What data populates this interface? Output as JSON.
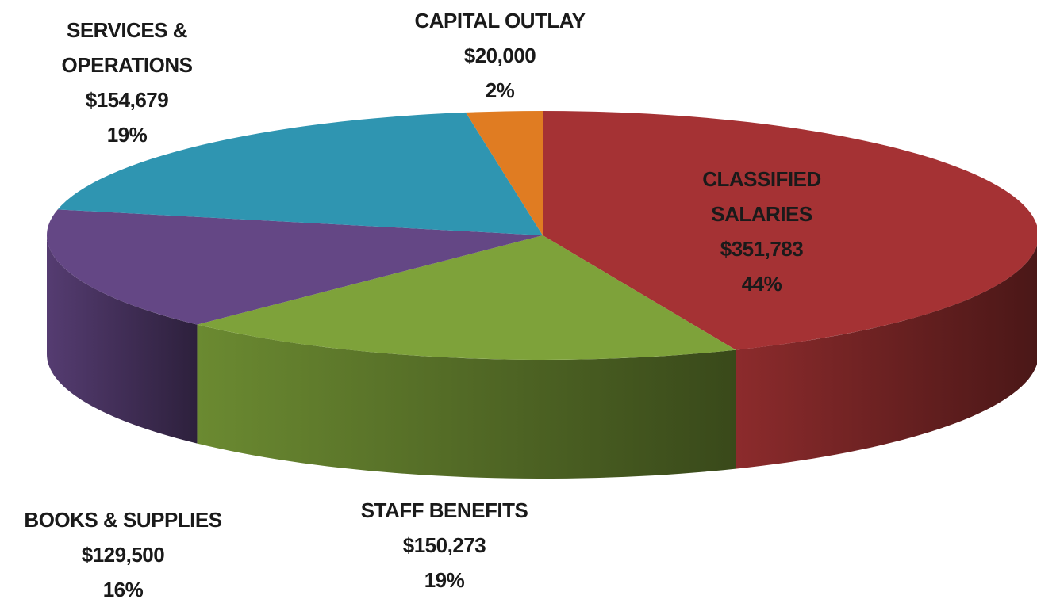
{
  "chart_data": {
    "type": "pie3d",
    "categories": [
      "CLASSIFIED SALARIES",
      "STAFF BENEFITS",
      "BOOKS & SUPPLIES",
      "SERVICES & OPERATIONS",
      "CAPITAL OUTLAY"
    ],
    "values": [
      351783,
      150273,
      129500,
      154679,
      20000
    ],
    "value_labels": [
      "$351,783",
      "$150,273",
      "$129,500",
      "$154,679",
      "$20,000"
    ],
    "percent_labels": [
      "44%",
      "19%",
      "16%",
      "19%",
      "2%"
    ],
    "colors": [
      "#a53234",
      "#7ea23a",
      "#644785",
      "#2f95b1",
      "#e07c22"
    ]
  }
}
